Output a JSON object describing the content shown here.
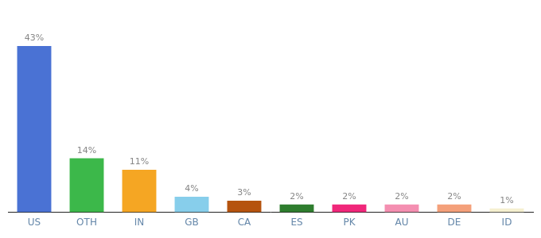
{
  "chart_data": {
    "type": "bar",
    "categories": [
      "US",
      "OTH",
      "IN",
      "GB",
      "CA",
      "ES",
      "PK",
      "AU",
      "DE",
      "ID"
    ],
    "values": [
      43,
      14,
      11,
      4,
      3,
      2,
      2,
      2,
      2,
      1
    ],
    "value_labels": [
      "43%",
      "14%",
      "11%",
      "4%",
      "3%",
      "2%",
      "2%",
      "2%",
      "2%",
      "1%"
    ],
    "colors": [
      "#4a72d4",
      "#3cb84a",
      "#f5a623",
      "#87ceeb",
      "#b5530e",
      "#2e7d2e",
      "#f0277a",
      "#f48fb1",
      "#f4a07a",
      "#f5f0d0"
    ],
    "ylim": [
      0,
      50
    ],
    "grid": false,
    "data_labels": true,
    "tick_labels": "x"
  }
}
